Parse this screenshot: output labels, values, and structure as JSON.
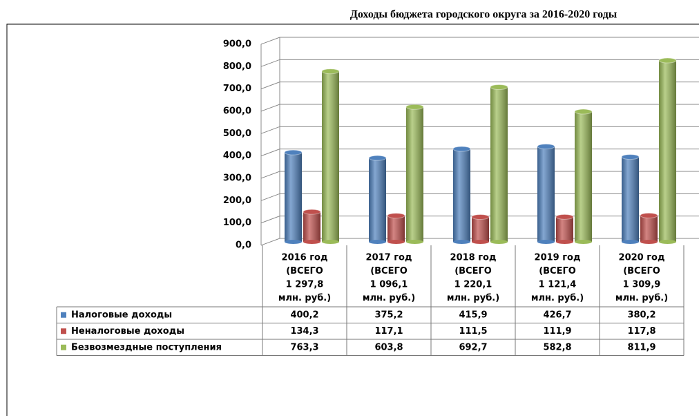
{
  "chart_data": {
    "type": "bar3d",
    "title": "Доходы бюджета городского округа за 2016-2020 годы",
    "categories": [
      [
        "2016 год",
        "(ВСЕГО",
        "1 297,8",
        "млн. руб.)"
      ],
      [
        "2017 год",
        "(ВСЕГО",
        "1 096,1",
        "млн. руб.)"
      ],
      [
        "2018 год",
        "(ВСЕГО",
        "1 220,1",
        "млн. руб.)"
      ],
      [
        "2019 год",
        "(ВСЕГО",
        "1 121,4",
        "млн. руб.)"
      ],
      [
        "2020 год",
        "(ВСЕГО",
        "1 309,9",
        "млн. руб.)"
      ]
    ],
    "series": [
      {
        "name": "Налоговые доходы",
        "color": "#4f81bd",
        "values": [
          400.2,
          375.2,
          415.9,
          426.7,
          380.2
        ],
        "value_labels": [
          "400,2",
          "375,2",
          "415,9",
          "426,7",
          "380,2"
        ]
      },
      {
        "name": "Неналоговые доходы",
        "color": "#c0504d",
        "values": [
          134.3,
          117.1,
          111.5,
          111.9,
          117.8
        ],
        "value_labels": [
          "134,3",
          "117,1",
          "111,5",
          "111,9",
          "117,8"
        ]
      },
      {
        "name": "Безвозмездные поступления",
        "color": "#9bbb59",
        "values": [
          763.3,
          603.8,
          692.7,
          582.8,
          811.9
        ],
        "value_labels": [
          "763,3",
          "603,8",
          "692,7",
          "582,8",
          "811,9"
        ]
      }
    ],
    "ylim": [
      0,
      900
    ],
    "yticks": [
      {
        "value": 0,
        "label": "0,0"
      },
      {
        "value": 100,
        "label": "100,0"
      },
      {
        "value": 200,
        "label": "200,0"
      },
      {
        "value": 300,
        "label": "300,0"
      },
      {
        "value": 400,
        "label": "400,0"
      },
      {
        "value": 500,
        "label": "500,0"
      },
      {
        "value": 600,
        "label": "600,0"
      },
      {
        "value": 700,
        "label": "700,0"
      },
      {
        "value": 800,
        "label": "800,0"
      },
      {
        "value": 900,
        "label": "900,0"
      }
    ],
    "grid": true
  }
}
